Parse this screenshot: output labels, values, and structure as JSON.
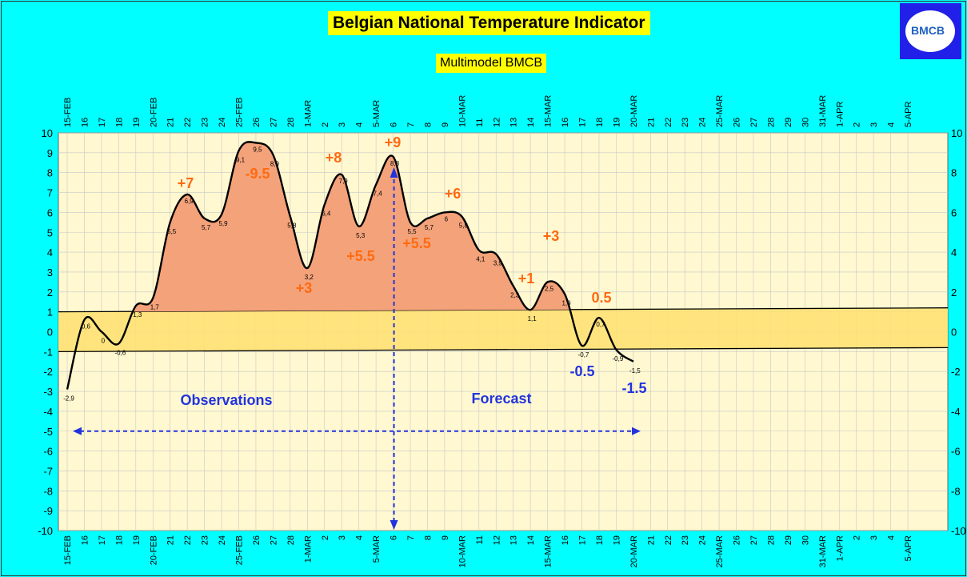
{
  "header": {
    "title": "Belgian National Temperature Indicator",
    "subtitle": "Multimodel BMCB",
    "logo_text": "BMCB"
  },
  "colors": {
    "background": "#00FFFF",
    "plot_background": "#FFF8D0",
    "band_fill": "#FFE070",
    "area_fill": "#F4A27A",
    "line": "#000000",
    "annotation_orange": "#FF6A10",
    "annotation_blue": "#2233DD"
  },
  "chart_data": {
    "type": "line",
    "title": "Belgian National Temperature Indicator",
    "subtitle": "Multimodel BMCB",
    "ylim": [
      -10,
      10
    ],
    "y_ticks_left": [
      "10",
      "9",
      "8",
      "7",
      "6",
      "5",
      "4",
      "3",
      "2",
      "1",
      "0",
      "-1",
      "-2",
      "-3",
      "-4",
      "-5",
      "-6",
      "-7",
      "-8",
      "-9",
      "-10"
    ],
    "y_ticks_right": [
      "10",
      "8",
      "6",
      "4",
      "2",
      "0",
      "-2",
      "-4",
      "-6",
      "-8",
      "-10"
    ],
    "x_tick_labels": [
      "15-FEB",
      "16",
      "17",
      "18",
      "19",
      "20-FEB",
      "21",
      "22",
      "23",
      "24",
      "25-FEB",
      "26",
      "27",
      "28",
      "1-MAR",
      "2",
      "3",
      "4",
      "5-MAR",
      "6",
      "7",
      "8",
      "9",
      "10-MAR",
      "11",
      "12",
      "13",
      "14",
      "15-MAR",
      "16",
      "17",
      "18",
      "19",
      "20-MAR",
      "21",
      "22",
      "23",
      "24",
      "25-MAR",
      "26",
      "27",
      "28",
      "29",
      "30",
      "31-MAR",
      "1-APR",
      "2",
      "3",
      "4",
      "5-APR"
    ],
    "grid": true,
    "series": [
      {
        "dates": [
          "15-FEB",
          "16-FEB",
          "17-FEB",
          "18-FEB",
          "19-FEB",
          "20-FEB",
          "21-FEB",
          "22-FEB",
          "23-FEB",
          "24-FEB",
          "25-FEB",
          "26-FEB",
          "27-FEB",
          "28-FEB",
          "1-MAR",
          "2-MAR",
          "3-MAR",
          "4-MAR",
          "5-MAR",
          "6-MAR",
          "7-MAR",
          "8-MAR",
          "9-MAR",
          "10-MAR",
          "11-MAR",
          "12-MAR",
          "13-MAR",
          "14-MAR",
          "15-MAR",
          "16-MAR",
          "17-MAR",
          "18-MAR",
          "19-MAR",
          "20-MAR"
        ],
        "values": [
          -2.9,
          0.6,
          0,
          -0.6,
          1.3,
          1.7,
          5.5,
          6.9,
          5.7,
          5.9,
          9.1,
          9.5,
          8.9,
          5.8,
          3.2,
          6.4,
          7.9,
          5.3,
          7.4,
          8.8,
          5.5,
          5.7,
          6.0,
          5.8,
          4.1,
          3.9,
          2.3,
          1.1,
          2.5,
          1.9,
          -0.7,
          0.7,
          -0.9,
          -1.5
        ],
        "point_labels": [
          "-2,9",
          "0,6",
          "0",
          "-0,6",
          "1,3",
          "1,7",
          "5,5",
          "6,9",
          "5,7",
          "5,9",
          "9,1",
          "9,5",
          "8,9",
          "5,8",
          "3,2",
          "6,4",
          "7,9",
          "5,3",
          "7,4",
          "8,8",
          "5,5",
          "5,7",
          "6",
          "5,8",
          "4,1",
          "3,9",
          "2,3",
          "1,1",
          "2,5",
          "1,9",
          "-0,7",
          "0,7",
          "-0,9",
          "-1,5"
        ]
      }
    ],
    "normal_band": {
      "upper": [
        1.0,
        1.2
      ],
      "lower": [
        -1.0,
        -0.8
      ]
    },
    "annotations": [
      {
        "text": "+7",
        "color": "orange"
      },
      {
        "text": "-9.5",
        "color": "orange"
      },
      {
        "text": "+8",
        "color": "orange"
      },
      {
        "text": "+3",
        "color": "orange"
      },
      {
        "text": "+5.5",
        "color": "orange"
      },
      {
        "text": "+9",
        "color": "orange"
      },
      {
        "text": "+5.5",
        "color": "orange"
      },
      {
        "text": "+6",
        "color": "orange"
      },
      {
        "text": "+3",
        "color": "orange"
      },
      {
        "text": "+1",
        "color": "orange"
      },
      {
        "text": "0.5",
        "color": "orange"
      },
      {
        "text": "-0.5",
        "color": "blue"
      },
      {
        "text": "-1.5",
        "color": "blue"
      }
    ],
    "sections": {
      "observations": "Observations",
      "forecast": "Forecast"
    },
    "forecast_start": "6-MAR"
  }
}
